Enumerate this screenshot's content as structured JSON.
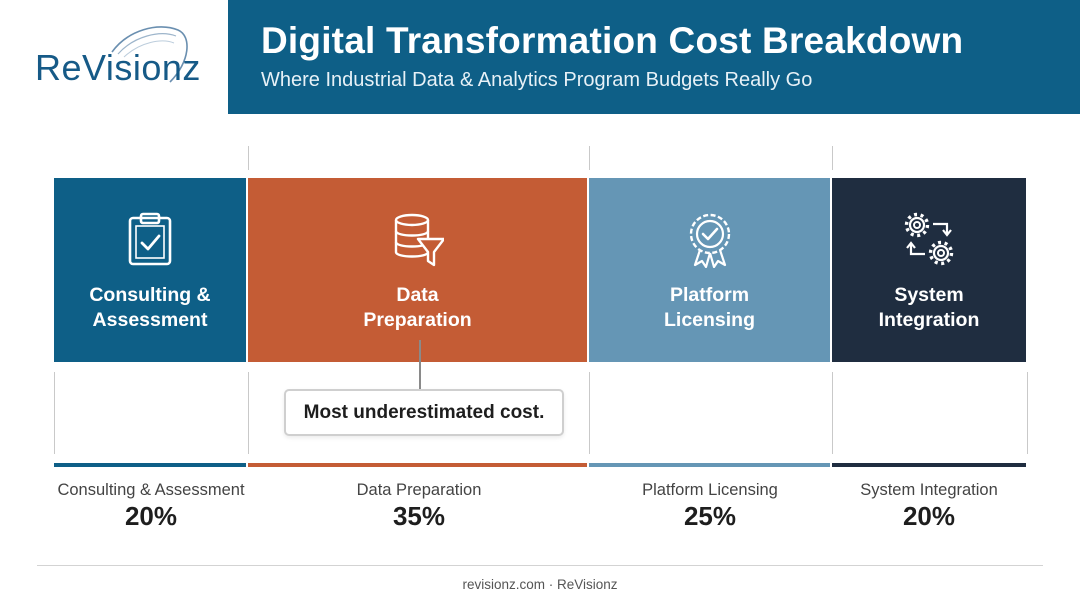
{
  "brand": {
    "logo_text": "ReVisionz"
  },
  "header": {
    "title": "Digital Transformation Cost Breakdown",
    "subtitle": "Where Industrial Data & Analytics Program Budgets Really Go",
    "background": "#0e5f87"
  },
  "callout": {
    "text": "Most underestimated cost.",
    "target": "Data Preparation"
  },
  "footer": {
    "text": "revisionz.com · ReVisionz"
  },
  "chart_data": {
    "type": "bar",
    "orientation": "horizontal-stacked",
    "title": "Digital Transformation Cost Breakdown",
    "subtitle": "Where Industrial Data & Analytics Program Budgets Really Go",
    "unit": "%",
    "total": 100,
    "categories": [
      {
        "label": "Consulting & Assessment",
        "tile_label": "Consulting &\nAssessment",
        "percent_label": "20%",
        "value": 20,
        "color": "#0e5f87",
        "icon": "clipboard-check-icon"
      },
      {
        "label": "Data Preparation",
        "tile_label": "Data\nPreparation",
        "percent_label": "35%",
        "value": 35,
        "color": "#c45c35",
        "icon": "database-filter-icon"
      },
      {
        "label": "Platform Licensing",
        "tile_label": "Platform\nLicensing",
        "percent_label": "25%",
        "value": 25,
        "color": "#6596b5",
        "icon": "certificate-badge-icon"
      },
      {
        "label": "System Integration",
        "tile_label": "System\nIntegration",
        "percent_label": "20%",
        "value": 20,
        "color": "#1f2d40",
        "icon": "gears-sync-icon"
      }
    ]
  }
}
